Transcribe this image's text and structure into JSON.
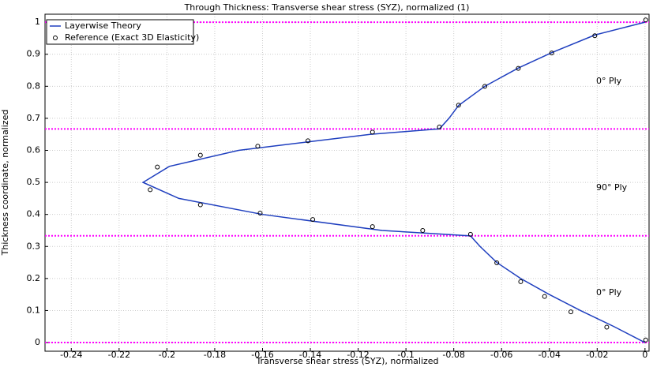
{
  "chart_data": {
    "type": "line",
    "title": "Through Thickness: Transverse shear stress (SYZ), normalized (1)",
    "x_label": "Transverse shear stress (SYZ), normalized",
    "y_label": "Thickness coordinate, normalized",
    "xlim": [
      -0.251,
      0.0017
    ],
    "ylim": [
      -0.027,
      1.025
    ],
    "xticks": [
      -0.24,
      -0.22,
      -0.2,
      -0.18,
      -0.16,
      -0.14,
      -0.12,
      -0.1,
      -0.08,
      -0.06,
      -0.04,
      -0.02,
      0
    ],
    "yticks": [
      0,
      0.1,
      0.2,
      0.3,
      0.4,
      0.5,
      0.6,
      0.7,
      0.8,
      0.9,
      1
    ],
    "grid": true,
    "legend": "upper left",
    "reference_lines": {
      "color": "#ff00ff",
      "values": [
        0,
        0.3333,
        0.6667,
        1
      ]
    },
    "annotations": [
      "0° Ply",
      "90° Ply",
      "0° Ply"
    ],
    "series": [
      {
        "name": "Layerwise Theory",
        "color": "#1f3fbf",
        "kind": "line",
        "x": [
          0,
          -0.013,
          -0.027,
          -0.04,
          -0.052,
          -0.062,
          -0.069,
          -0.073,
          -0.11,
          -0.16,
          -0.195,
          -0.21,
          -0.199,
          -0.17,
          -0.115,
          -0.086,
          -0.082,
          -0.078,
          -0.067,
          -0.053,
          -0.039,
          -0.021,
          0
        ],
        "values": [
          0,
          0.05,
          0.1,
          0.15,
          0.2,
          0.25,
          0.3,
          0.333,
          0.35,
          0.4,
          0.45,
          0.5,
          0.55,
          0.6,
          0.65,
          0.667,
          0.7,
          0.74,
          0.8,
          0.857,
          0.905,
          0.96,
          1
        ]
      },
      {
        "name": "Reference (Exact 3D Elasticity)",
        "color": "#000000",
        "kind": "scatter",
        "x": [
          0.0003,
          -0.016,
          -0.031,
          -0.042,
          -0.052,
          -0.062,
          -0.073,
          -0.093,
          -0.114,
          -0.139,
          -0.161,
          -0.186,
          -0.207,
          -0.204,
          -0.186,
          -0.162,
          -0.141,
          -0.114,
          -0.086,
          -0.078,
          -0.067,
          -0.053,
          -0.039,
          -0.021,
          0.0003
        ],
        "values": [
          0.008,
          0.048,
          0.096,
          0.144,
          0.19,
          0.249,
          0.338,
          0.35,
          0.362,
          0.384,
          0.404,
          0.43,
          0.477,
          0.548,
          0.585,
          0.613,
          0.63,
          0.657,
          0.673,
          0.741,
          0.8,
          0.856,
          0.904,
          0.958,
          1.007
        ]
      }
    ]
  }
}
